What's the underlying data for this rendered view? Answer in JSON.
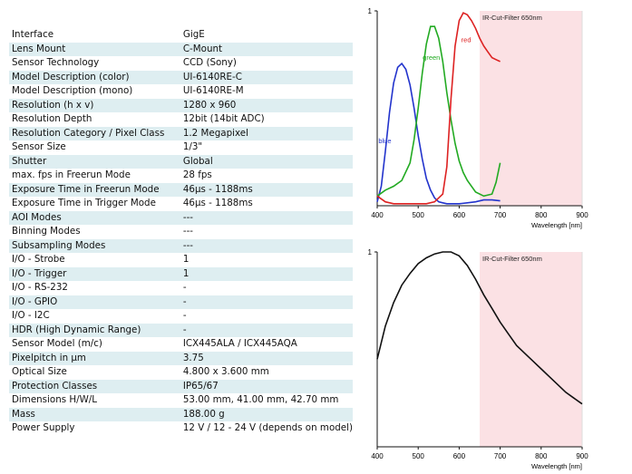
{
  "specs": [
    {
      "label": "Interface",
      "value": "GigE"
    },
    {
      "label": "Lens Mount",
      "value": "C-Mount"
    },
    {
      "label": "Sensor Technology",
      "value": "CCD (Sony)"
    },
    {
      "label": "Model Description (color)",
      "value": "UI-6140RE-C"
    },
    {
      "label": "Model Description (mono)",
      "value": "UI-6140RE-M"
    },
    {
      "label": "Resolution (h x v)",
      "value": "1280 x 960"
    },
    {
      "label": "Resolution Depth",
      "value": "12bit (14bit ADC)"
    },
    {
      "label": "Resolution Category / Pixel Class",
      "value": "1.2 Megapixel"
    },
    {
      "label": "Sensor Size",
      "value": "1/3\""
    },
    {
      "label": "Shutter",
      "value": "Global"
    },
    {
      "label": "max. fps in Freerun Mode",
      "value": "28 fps"
    },
    {
      "label": "Exposure Time in Freerun Mode",
      "value": "46µs - 1188ms"
    },
    {
      "label": "Exposure Time in Trigger Mode",
      "value": "46µs - 1188ms"
    },
    {
      "label": "AOI Modes",
      "value": "---"
    },
    {
      "label": "Binning Modes",
      "value": "---"
    },
    {
      "label": "Subsampling Modes",
      "value": "---"
    },
    {
      "label": "I/O - Strobe",
      "value": "1"
    },
    {
      "label": "I/O - Trigger",
      "value": "1"
    },
    {
      "label": "I/O - RS-232",
      "value": "-"
    },
    {
      "label": "I/O - GPIO",
      "value": "-"
    },
    {
      "label": "I/O - I2C",
      "value": "-"
    },
    {
      "label": "HDR (High Dynamic Range)",
      "value": "-"
    },
    {
      "label": "Sensor Model (m/c)",
      "value": "ICX445ALA / ICX445AQA"
    },
    {
      "label": "Pixelpitch in µm",
      "value": "3.75"
    },
    {
      "label": "Optical Size",
      "value": "4.800 x 3.600 mm"
    },
    {
      "label": "Protection Classes",
      "value": "IP65/67"
    },
    {
      "label": "Dimensions H/W/L",
      "value": "53.00 mm, 41.00 mm, 42.70 mm"
    },
    {
      "label": "Mass",
      "value": "188.00 g"
    },
    {
      "label": "Power Supply",
      "value": "12 V / 12 - 24 V (depends on model)"
    }
  ],
  "chart_data": [
    {
      "type": "line",
      "xlabel": "Wavelength [nm]",
      "xlim": [
        400,
        900
      ],
      "ylim": [
        0,
        1
      ],
      "x_ticks": [
        "400",
        "500",
        "600",
        "700",
        "800",
        "900"
      ],
      "y_ticks": [
        "1"
      ],
      "filter_region": {
        "from": 650,
        "to": 900,
        "label": "IR-Cut-Filter 650nm",
        "color": "#fbe1e4"
      },
      "series": [
        {
          "name": "blue",
          "color": "#2233cc",
          "x": [
            400,
            410,
            420,
            430,
            440,
            450,
            460,
            470,
            480,
            490,
            500,
            510,
            520,
            530,
            540,
            550,
            560,
            570,
            580,
            600,
            620,
            640,
            660,
            680,
            700
          ],
          "y": [
            0.02,
            0.1,
            0.28,
            0.48,
            0.63,
            0.71,
            0.73,
            0.7,
            0.62,
            0.5,
            0.36,
            0.24,
            0.14,
            0.08,
            0.04,
            0.02,
            0.015,
            0.01,
            0.01,
            0.01,
            0.015,
            0.02,
            0.03,
            0.03,
            0.025
          ]
        },
        {
          "name": "green",
          "color": "#22aa22",
          "x": [
            400,
            420,
            440,
            460,
            480,
            490,
            500,
            510,
            520,
            530,
            540,
            550,
            560,
            570,
            580,
            590,
            600,
            610,
            620,
            640,
            660,
            680,
            690,
            700
          ],
          "y": [
            0.05,
            0.08,
            0.1,
            0.13,
            0.22,
            0.34,
            0.5,
            0.68,
            0.83,
            0.92,
            0.92,
            0.86,
            0.74,
            0.58,
            0.44,
            0.32,
            0.23,
            0.17,
            0.13,
            0.07,
            0.05,
            0.06,
            0.12,
            0.22
          ]
        },
        {
          "name": "red",
          "color": "#dd2222",
          "x": [
            400,
            420,
            440,
            460,
            480,
            500,
            520,
            540,
            560,
            570,
            580,
            590,
            600,
            610,
            620,
            630,
            640,
            650,
            660,
            670,
            680,
            690,
            700
          ],
          "y": [
            0.05,
            0.02,
            0.01,
            0.01,
            0.01,
            0.01,
            0.01,
            0.02,
            0.06,
            0.2,
            0.55,
            0.82,
            0.95,
            0.99,
            0.98,
            0.95,
            0.91,
            0.86,
            0.82,
            0.79,
            0.76,
            0.75,
            0.74
          ]
        }
      ]
    },
    {
      "type": "line",
      "xlabel": "Wavelength [nm]",
      "xlim": [
        400,
        900
      ],
      "ylim": [
        0,
        1
      ],
      "x_ticks": [
        "400",
        "500",
        "600",
        "700",
        "800",
        "900"
      ],
      "y_ticks": [
        "1"
      ],
      "filter_region": {
        "from": 650,
        "to": 900,
        "label": "IR-Cut-Filter 650nm",
        "color": "#fbe1e4"
      },
      "series": [
        {
          "name": "",
          "color": "#111111",
          "x": [
            400,
            420,
            440,
            460,
            480,
            500,
            520,
            540,
            560,
            580,
            590,
            600,
            620,
            640,
            660,
            680,
            700,
            720,
            740,
            760,
            780,
            800,
            820,
            840,
            860,
            880,
            900
          ],
          "y": [
            0.45,
            0.62,
            0.74,
            0.83,
            0.89,
            0.94,
            0.97,
            0.99,
            1.0,
            1.0,
            0.99,
            0.98,
            0.93,
            0.86,
            0.78,
            0.71,
            0.64,
            0.58,
            0.52,
            0.48,
            0.44,
            0.4,
            0.36,
            0.32,
            0.28,
            0.25,
            0.22
          ]
        }
      ]
    }
  ]
}
